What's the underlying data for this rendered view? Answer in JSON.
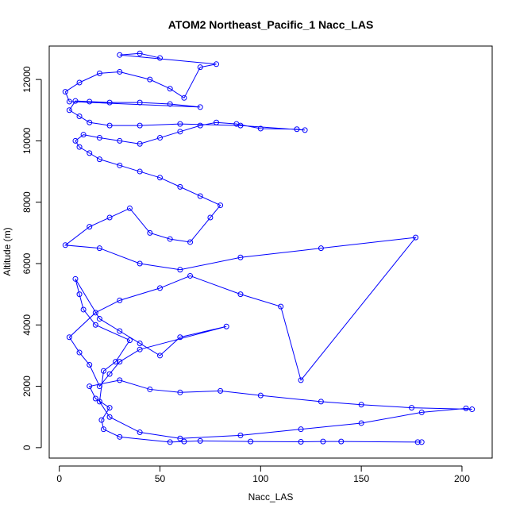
{
  "chart_data": {
    "type": "line",
    "title": "ATOM2 Northeast_Pacific_1 Nacc_LAS",
    "x_label": "Nacc_LAS",
    "y_label": "Altitude (m)",
    "color": "#0000ff",
    "markers": true,
    "xlim": [
      -5,
      215
    ],
    "ylim": [
      -340,
      13090
    ],
    "xticks": [
      0,
      50,
      100,
      150,
      200
    ],
    "yticks": [
      0,
      2000,
      4000,
      6000,
      8000,
      10000,
      12000
    ],
    "x": [
      178,
      180,
      140,
      131,
      120,
      95,
      70,
      62,
      55,
      30,
      22,
      21,
      25,
      18,
      15,
      30,
      45,
      60,
      80,
      100,
      130,
      150,
      175,
      205,
      202,
      180,
      150,
      120,
      90,
      60,
      40,
      25,
      20,
      22,
      28,
      35,
      18,
      12,
      10,
      8,
      20,
      30,
      40,
      50,
      60,
      83,
      40,
      30,
      25,
      20,
      15,
      10,
      5,
      18,
      30,
      50,
      65,
      90,
      110,
      120,
      177,
      130,
      90,
      60,
      40,
      20,
      3,
      15,
      25,
      35,
      45,
      55,
      65,
      75,
      80,
      70,
      60,
      50,
      40,
      30,
      20,
      15,
      10,
      8,
      12,
      20,
      30,
      40,
      50,
      60,
      70,
      78,
      88,
      100,
      118,
      122,
      90,
      60,
      40,
      25,
      15,
      10,
      5,
      8,
      15,
      25,
      40,
      55,
      70,
      5,
      3,
      10,
      20,
      30,
      45,
      55,
      62,
      70,
      78,
      30,
      40,
      50
    ],
    "y": [
      180,
      180,
      200,
      200,
      190,
      200,
      220,
      200,
      180,
      350,
      600,
      900,
      1300,
      1600,
      2000,
      2200,
      1900,
      1800,
      1850,
      1700,
      1500,
      1400,
      1300,
      1250,
      1280,
      1150,
      800,
      600,
      400,
      300,
      500,
      1000,
      1500,
      2500,
      2800,
      3500,
      4000,
      4500,
      5000,
      5500,
      4200,
      3800,
      3400,
      3000,
      3600,
      3950,
      3200,
      2800,
      2400,
      2000,
      2700,
      3100,
      3600,
      4400,
      4800,
      5200,
      5600,
      5000,
      4600,
      2200,
      6850,
      6500,
      6200,
      5800,
      6000,
      6500,
      6600,
      7200,
      7500,
      7800,
      7000,
      6800,
      6700,
      7500,
      7900,
      8200,
      8500,
      8800,
      9000,
      9200,
      9400,
      9600,
      9800,
      10000,
      10200,
      10100,
      10000,
      9900,
      10100,
      10300,
      10500,
      10600,
      10550,
      10400,
      10380,
      10350,
      10500,
      10550,
      10500,
      10500,
      10600,
      10800,
      11000,
      11300,
      11280,
      11250,
      11250,
      11200,
      11100,
      11280,
      11600,
      11900,
      12200,
      12250,
      12000,
      11700,
      11400,
      12400,
      12500,
      12800,
      12850,
      12700
    ]
  }
}
